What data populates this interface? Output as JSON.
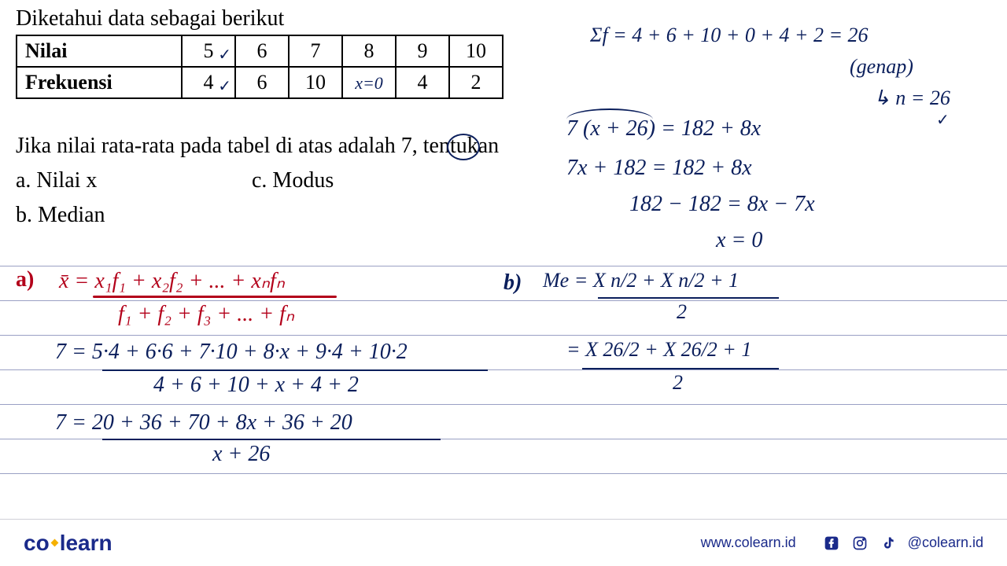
{
  "problem": {
    "title": "Diketahui data sebagai berikut",
    "table": {
      "row_headers": [
        "Nilai",
        "Frekuensi"
      ],
      "columns": [
        "5",
        "6",
        "7",
        "8",
        "9",
        "10"
      ],
      "freq": [
        "4",
        "6",
        "10",
        "x=0",
        "4",
        "2"
      ],
      "freq_col_8_annotation": "x=0",
      "checkmark_nilai_col": "✓",
      "checkmark_freq_col": "✓"
    },
    "question_line": "Jika nilai rata-rata pada tabel di atas adalah 7, tentukan",
    "circled_value": "7,",
    "parts": {
      "a": "a. Nilai x",
      "c": "c. Modus",
      "b": "b. Median"
    }
  },
  "work_right": {
    "line1": "Σf = 4 + 6 + 10 + 0 + 4 + 2 = 26",
    "line2": "(genap)",
    "line3": "↳ n = 26",
    "line3_check": "✓",
    "eq1": "7 (x + 26)  =  182 + 8x",
    "eq2": "7x + 182  =  182 + 8x",
    "eq3": "182 − 182  =  8x − 7x",
    "eq4": "x  = 0"
  },
  "work_a": {
    "label": "a)",
    "mean_formula_top": "x̄ = x₁f₁ + x₂f₂ + ... + xₙfₙ",
    "mean_formula_bottom": "f₁ + f₂ + f₃ + ... + fₙ",
    "calc1_top": "7  =  5·4 + 6·6 + 7·10 + 8·x + 9·4 + 10·2",
    "calc1_bottom": "4 + 6 + 10 + x + 4 + 2",
    "calc2_top": "7  =  20 + 36 + 70 + 8x + 36 + 20",
    "calc2_bottom": "x + 26"
  },
  "work_b": {
    "label": "b)",
    "me_top": "Me =  X n/2  +  X n/2 + 1",
    "me_bottom": "2",
    "me2_top": "=  X 26/2  +  X 26/2 + 1",
    "me2_bottom": "2"
  },
  "footer": {
    "logo_co": "co",
    "logo_learn": "learn",
    "url": "www.colearn.id",
    "handle": "@colearn.id"
  },
  "colors": {
    "print": "#000000",
    "handwriting_blue": "#0b1f5c",
    "handwriting_red": "#b3001a",
    "rule_line": "#9aa0c4",
    "brand_blue": "#1a2a8a",
    "brand_yellow": "#f5b000"
  }
}
